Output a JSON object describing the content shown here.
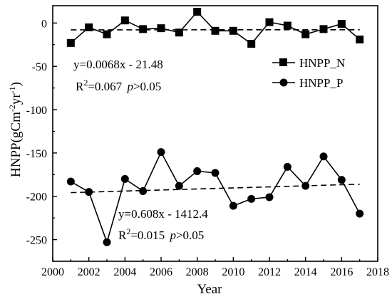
{
  "chart_data": {
    "type": "line",
    "xlabel": "Year",
    "ylabel": {
      "base": "HNPP(gCm",
      "sup1": "-2",
      "mid": "yr",
      "sup2": "-1",
      "end": ")"
    },
    "xlim": [
      2000,
      2018
    ],
    "ylim": [
      -275,
      20
    ],
    "xticks": [
      2000,
      2002,
      2004,
      2006,
      2008,
      2010,
      2012,
      2014,
      2016,
      2018
    ],
    "yticks": [
      0,
      -50,
      -100,
      -150,
      -200,
      -250
    ],
    "grid": false,
    "legend_position": "top-right",
    "series": [
      {
        "name": "HNPP_N",
        "marker": "square",
        "x": [
          2001,
          2002,
          2003,
          2004,
          2005,
          2006,
          2007,
          2008,
          2009,
          2010,
          2011,
          2012,
          2013,
          2014,
          2015,
          2016,
          2017
        ],
        "values": [
          -23,
          -5,
          -13,
          3,
          -7,
          -6,
          -11,
          13,
          -9,
          -9,
          -24,
          1,
          -3,
          -13,
          -7,
          -1,
          -19
        ]
      },
      {
        "name": "HNPP_P",
        "marker": "circle",
        "x": [
          2001,
          2002,
          2003,
          2004,
          2005,
          2006,
          2007,
          2008,
          2009,
          2010,
          2011,
          2012,
          2013,
          2014,
          2015,
          2016,
          2017
        ],
        "values": [
          -183,
          -195,
          -253,
          -180,
          -194,
          -149,
          -188,
          -171,
          -173,
          -211,
          -203,
          -201,
          -166,
          -188,
          -154,
          -181,
          -220
        ]
      }
    ],
    "trendlines": [
      {
        "series": "HNPP_N",
        "slope": 0.0068,
        "intercept": -21.48
      },
      {
        "series": "HNPP_P",
        "slope": 0.608,
        "intercept": -1412.4
      }
    ],
    "annotations": [
      {
        "series": "HNPP_N",
        "equation": "y=0.0068x - 21.48",
        "r2_prefix": "R",
        "r2_sup": "2",
        "r2_value": "=0.067 ",
        "p": "p",
        "p_cond": ">0.05"
      },
      {
        "series": "HNPP_P",
        "equation": "y=0.608x - 1412.4",
        "r2_prefix": "R",
        "r2_sup": "2",
        "r2_value": "=0.015 ",
        "p": "p",
        "p_cond": ">0.05"
      }
    ]
  }
}
